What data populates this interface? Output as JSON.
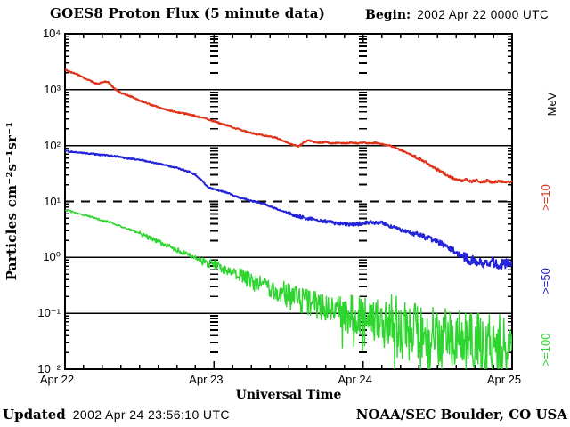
{
  "header": {
    "title": "GOES8 Proton Flux (5 minute data)",
    "begin_label": "Begin:",
    "begin_value": "2002 Apr 22 0000 UTC"
  },
  "footer": {
    "updated_label": "Updated",
    "updated_value": "2002 Apr 24 23:56:10 UTC",
    "credit": "NOAA/SEC Boulder, CO USA"
  },
  "chart_data": {
    "type": "line",
    "title": "GOES8 Proton Flux (5 minute data)",
    "xlabel": "Universal Time",
    "ylabel": "Particles cm⁻²s⁻¹sr⁻¹",
    "x_axis": {
      "unit": "hours since 2002 Apr 22 0000 UTC",
      "min": 0,
      "max": 72,
      "minor_tick_hours": 3,
      "major_ticks": [
        {
          "hour": 0,
          "label": "Apr 22"
        },
        {
          "hour": 24,
          "label": "Apr 23"
        },
        {
          "hour": 48,
          "label": "Apr 24"
        },
        {
          "hour": 72,
          "label": "Apr 25"
        }
      ]
    },
    "y_axis": {
      "scale": "log",
      "min": 0.01,
      "max": 10000,
      "tick_labels": [
        {
          "value": 10000,
          "label": "10⁴"
        },
        {
          "value": 1000,
          "label": "10³"
        },
        {
          "value": 100,
          "label": "10²"
        },
        {
          "value": 10,
          "label": "10¹"
        },
        {
          "value": 1,
          "label": "10⁰"
        },
        {
          "value": 0.1,
          "label": "10⁻¹"
        },
        {
          "value": 0.01,
          "label": "10⁻²"
        }
      ]
    },
    "grid": {
      "solid_levels": [
        1000,
        100,
        1,
        0.1
      ],
      "dashed_levels": [
        10
      ],
      "day_boundary_hours": [
        24,
        48
      ]
    },
    "legend": {
      "unit_label": "MeV",
      "unit_color": "#000000",
      "entries": [
        {
          "label": ">=10",
          "color": "#e03119"
        },
        {
          "label": ">=50",
          "color": "#2424d9"
        },
        {
          "label": ">=100",
          "color": "#2ed52e"
        }
      ]
    },
    "series": [
      {
        "name": "protons-ge-10MeV",
        "legend": ">=10",
        "color": "#e03119",
        "stroke_width": 2,
        "noise_log": [
          [
            0,
            56,
            0.012
          ],
          [
            56,
            72,
            0.022
          ]
        ],
        "points_h_flux": [
          [
            0,
            2300
          ],
          [
            0.8,
            2100
          ],
          [
            1.6,
            1950
          ],
          [
            2.4,
            1800
          ],
          [
            3.2,
            1600
          ],
          [
            4,
            1450
          ],
          [
            4.8,
            1320
          ],
          [
            5.5,
            1280
          ],
          [
            6.2,
            1400
          ],
          [
            7,
            1350
          ],
          [
            7.6,
            1150
          ],
          [
            8.2,
            1000
          ],
          [
            9,
            880
          ],
          [
            10,
            800
          ],
          [
            11,
            730
          ],
          [
            12,
            640
          ],
          [
            13,
            580
          ],
          [
            14,
            530
          ],
          [
            15,
            490
          ],
          [
            16,
            450
          ],
          [
            17,
            420
          ],
          [
            18,
            395
          ],
          [
            19,
            380
          ],
          [
            20,
            360
          ],
          [
            21,
            340
          ],
          [
            22,
            315
          ],
          [
            23,
            295
          ],
          [
            24,
            272
          ],
          [
            25,
            250
          ],
          [
            26,
            232
          ],
          [
            27,
            212
          ],
          [
            28,
            196
          ],
          [
            29,
            181
          ],
          [
            30,
            168
          ],
          [
            31,
            158
          ],
          [
            32,
            152
          ],
          [
            33,
            145
          ],
          [
            34,
            138
          ],
          [
            35,
            125
          ],
          [
            36,
            110
          ],
          [
            37,
            101
          ],
          [
            37.6,
            97
          ],
          [
            38.4,
            112
          ],
          [
            39.2,
            124
          ],
          [
            40,
            117
          ],
          [
            41,
            112
          ],
          [
            42,
            115
          ],
          [
            43,
            110
          ],
          [
            44,
            113
          ],
          [
            45,
            109
          ],
          [
            46,
            113
          ],
          [
            47,
            110
          ],
          [
            48,
            113
          ],
          [
            49,
            110
          ],
          [
            50,
            112
          ],
          [
            51,
            106
          ],
          [
            52,
            101
          ],
          [
            52.6,
            98
          ],
          [
            53.4,
            89
          ],
          [
            54.2,
            82
          ],
          [
            55,
            75
          ],
          [
            55.8,
            68
          ],
          [
            56.6,
            61
          ],
          [
            57.4,
            55
          ],
          [
            58.2,
            49
          ],
          [
            59,
            43
          ],
          [
            59.8,
            38
          ],
          [
            60.6,
            34
          ],
          [
            61.4,
            30
          ],
          [
            62.2,
            27
          ],
          [
            63,
            25
          ],
          [
            63.8,
            23.5
          ],
          [
            64.6,
            24.5
          ],
          [
            65.4,
            22.5
          ],
          [
            66.2,
            24
          ],
          [
            67,
            22
          ],
          [
            68,
            23.5
          ],
          [
            69,
            22
          ],
          [
            70,
            23
          ],
          [
            71,
            21.5
          ],
          [
            72,
            22.5
          ]
        ]
      },
      {
        "name": "protons-ge-50MeV",
        "legend": ">=50",
        "color": "#2424d9",
        "stroke_width": 2,
        "noise_log": [
          [
            0,
            36,
            0.012
          ],
          [
            36,
            56,
            0.03
          ],
          [
            56,
            64,
            0.05
          ],
          [
            64,
            72,
            0.09
          ]
        ],
        "points_h_flux": [
          [
            0,
            80
          ],
          [
            1,
            78
          ],
          [
            2,
            76
          ],
          [
            3,
            74
          ],
          [
            4,
            72
          ],
          [
            5,
            70
          ],
          [
            6,
            68
          ],
          [
            7,
            66
          ],
          [
            8,
            65
          ],
          [
            9,
            62
          ],
          [
            10,
            59
          ],
          [
            11,
            57.5
          ],
          [
            12,
            56
          ],
          [
            13,
            53
          ],
          [
            14,
            50
          ],
          [
            15,
            48
          ],
          [
            16,
            45
          ],
          [
            17,
            42
          ],
          [
            18,
            40
          ],
          [
            19,
            37
          ],
          [
            20,
            34
          ],
          [
            21,
            30
          ],
          [
            22,
            24
          ],
          [
            22.6,
            20
          ],
          [
            23.2,
            17.5
          ],
          [
            24,
            16.5
          ],
          [
            25,
            15.5
          ],
          [
            26,
            14.5
          ],
          [
            27,
            13
          ],
          [
            28,
            11.8
          ],
          [
            29,
            11
          ],
          [
            30,
            10.3
          ],
          [
            31,
            9.7
          ],
          [
            32,
            9.1
          ],
          [
            33,
            8.2
          ],
          [
            34,
            7.4
          ],
          [
            35,
            6.8
          ],
          [
            36,
            6.2
          ],
          [
            37,
            5.7
          ],
          [
            38,
            5.3
          ],
          [
            39,
            5.0
          ],
          [
            40,
            4.8
          ],
          [
            41,
            4.6
          ],
          [
            42,
            4.4
          ],
          [
            43,
            4.2
          ],
          [
            44,
            4.05
          ],
          [
            45,
            3.95
          ],
          [
            46,
            3.9
          ],
          [
            47,
            3.95
          ],
          [
            48,
            4.1
          ],
          [
            49,
            4.25
          ],
          [
            50,
            4.15
          ],
          [
            50.8,
            4.3
          ],
          [
            51.6,
            4.0
          ],
          [
            52.5,
            3.6
          ],
          [
            53.5,
            3.3
          ],
          [
            54.5,
            3.0
          ],
          [
            55.5,
            2.8
          ],
          [
            56.5,
            2.6
          ],
          [
            57.5,
            2.4
          ],
          [
            58.5,
            2.2
          ],
          [
            59.5,
            2.0
          ],
          [
            60.5,
            1.8
          ],
          [
            61.5,
            1.55
          ],
          [
            62.5,
            1.35
          ],
          [
            63.5,
            1.12
          ],
          [
            64.5,
            0.98
          ],
          [
            65.5,
            0.9
          ],
          [
            66.5,
            0.85
          ],
          [
            67.5,
            0.8
          ],
          [
            68.5,
            0.83
          ],
          [
            69.5,
            0.78
          ],
          [
            70.5,
            0.74
          ],
          [
            71.2,
            0.8
          ],
          [
            72,
            0.85
          ]
        ]
      },
      {
        "name": "protons-ge-100MeV",
        "legend": ">=100",
        "color": "#2ed52e",
        "stroke_width": 1.4,
        "noise_log": [
          [
            0,
            12,
            0.02
          ],
          [
            12,
            22,
            0.045
          ],
          [
            22,
            28,
            0.09
          ],
          [
            28,
            34,
            0.16
          ],
          [
            34,
            44,
            0.24
          ],
          [
            44,
            52,
            0.34
          ],
          [
            52,
            72,
            0.5
          ]
        ],
        "points_h_flux": [
          [
            0,
            7.0
          ],
          [
            1,
            6.6
          ],
          [
            2,
            6.2
          ],
          [
            3,
            5.8
          ],
          [
            4,
            5.4
          ],
          [
            5,
            5.0
          ],
          [
            6,
            4.6
          ],
          [
            7,
            4.3
          ],
          [
            8,
            4.0
          ],
          [
            9,
            3.6
          ],
          [
            10,
            3.3
          ],
          [
            11,
            3.0
          ],
          [
            12,
            2.7
          ],
          [
            13,
            2.4
          ],
          [
            14,
            2.15
          ],
          [
            15,
            1.9
          ],
          [
            16,
            1.7
          ],
          [
            17,
            1.52
          ],
          [
            18,
            1.36
          ],
          [
            19,
            1.22
          ],
          [
            20,
            1.1
          ],
          [
            21,
            1.0
          ],
          [
            22,
            0.9
          ],
          [
            23,
            0.82
          ],
          [
            24,
            0.74
          ],
          [
            25,
            0.66
          ],
          [
            26,
            0.6
          ],
          [
            27,
            0.54
          ],
          [
            28,
            0.48
          ],
          [
            29,
            0.43
          ],
          [
            30,
            0.38
          ],
          [
            31,
            0.34
          ],
          [
            32,
            0.31
          ],
          [
            33,
            0.28
          ],
          [
            34,
            0.25
          ],
          [
            35,
            0.225
          ],
          [
            36,
            0.2
          ],
          [
            37,
            0.185
          ],
          [
            38,
            0.17
          ],
          [
            39,
            0.158
          ],
          [
            40,
            0.147
          ],
          [
            41,
            0.137
          ],
          [
            42,
            0.128
          ],
          [
            43,
            0.12
          ],
          [
            44,
            0.113
          ],
          [
            45,
            0.107
          ],
          [
            46,
            0.101
          ],
          [
            47,
            0.096
          ],
          [
            48,
            0.091
          ],
          [
            49,
            0.086
          ],
          [
            50,
            0.081
          ],
          [
            51,
            0.076
          ],
          [
            52,
            0.071
          ],
          [
            53,
            0.066
          ],
          [
            54,
            0.062
          ],
          [
            55,
            0.058
          ],
          [
            56,
            0.054
          ],
          [
            57,
            0.05
          ],
          [
            58,
            0.047
          ],
          [
            59,
            0.044
          ],
          [
            60,
            0.042
          ],
          [
            61,
            0.04
          ],
          [
            62,
            0.038
          ],
          [
            63,
            0.036
          ],
          [
            64,
            0.035
          ],
          [
            65,
            0.034
          ],
          [
            66,
            0.033
          ],
          [
            67,
            0.032
          ],
          [
            68,
            0.031
          ],
          [
            69,
            0.03
          ],
          [
            70,
            0.03
          ],
          [
            71,
            0.032
          ],
          [
            72,
            0.035
          ]
        ]
      }
    ]
  }
}
